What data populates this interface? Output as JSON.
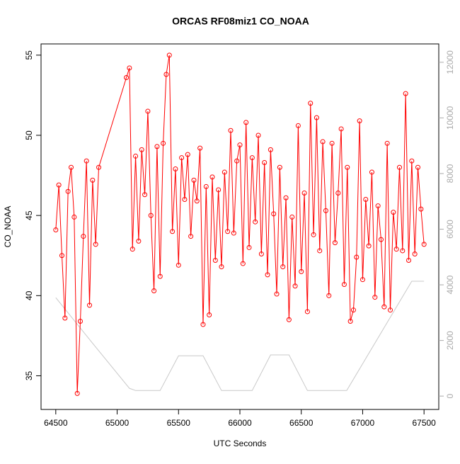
{
  "chart_data": {
    "type": "line",
    "title": "ORCAS RF08miz1 CO_NOAA",
    "x_label": "UTC Seconds",
    "y_label": "CO_NOAA",
    "xlim": [
      64380,
      67620
    ],
    "xticks": [
      64500,
      65000,
      65500,
      66000,
      66500,
      67000,
      67500
    ],
    "ylim": [
      32.9,
      55.7
    ],
    "yticks": [
      35,
      40,
      45,
      50,
      55
    ],
    "y2lim": [
      -480,
      12660
    ],
    "y2ticks": [
      0,
      2000,
      4000,
      6000,
      8000,
      10000,
      12000
    ],
    "grid": false,
    "series": [
      {
        "name": "CO_NOAA",
        "color": "#ff0000",
        "markers": true,
        "x": [
          64500,
          64525,
          64550,
          64575,
          64600,
          64625,
          64650,
          64675,
          64700,
          64725,
          64750,
          64775,
          64800,
          64825,
          64850,
          65075,
          65100,
          65125,
          65150,
          65175,
          65200,
          65225,
          65250,
          65275,
          65300,
          65325,
          65350,
          65375,
          65400,
          65425,
          65450,
          65475,
          65500,
          65525,
          65550,
          65575,
          65600,
          65625,
          65650,
          65675,
          65700,
          65725,
          65750,
          65775,
          65800,
          65825,
          65850,
          65875,
          65900,
          65925,
          65950,
          65975,
          66000,
          66025,
          66050,
          66075,
          66100,
          66125,
          66150,
          66175,
          66200,
          66225,
          66250,
          66275,
          66300,
          66325,
          66350,
          66375,
          66400,
          66425,
          66450,
          66475,
          66500,
          66525,
          66550,
          66575,
          66600,
          66625,
          66650,
          66675,
          66700,
          66725,
          66750,
          66775,
          66800,
          66825,
          66850,
          66875,
          66900,
          66925,
          66950,
          66975,
          67000,
          67025,
          67050,
          67075,
          67100,
          67125,
          67150,
          67175,
          67200,
          67225,
          67250,
          67275,
          67300,
          67325,
          67350,
          67375,
          67400,
          67425,
          67450,
          67475,
          67500
        ],
        "values": [
          44.1,
          46.9,
          42.5,
          38.6,
          46.5,
          48.0,
          44.9,
          33.9,
          38.4,
          43.7,
          48.4,
          39.4,
          47.2,
          43.2,
          48.0,
          53.6,
          54.2,
          42.9,
          48.7,
          43.4,
          49.1,
          46.3,
          51.5,
          45.0,
          40.3,
          49.3,
          41.2,
          49.5,
          53.8,
          55.0,
          44.0,
          47.9,
          41.9,
          48.6,
          46.0,
          48.8,
          43.7,
          47.2,
          45.9,
          49.2,
          38.2,
          46.8,
          38.8,
          47.4,
          42.2,
          46.6,
          41.8,
          47.7,
          44.0,
          50.3,
          43.9,
          48.4,
          49.4,
          42.0,
          50.8,
          43.0,
          48.6,
          44.6,
          50.0,
          42.6,
          48.3,
          41.3,
          49.1,
          45.1,
          40.1,
          48.0,
          41.8,
          46.1,
          38.5,
          44.9,
          40.6,
          50.6,
          41.5,
          46.4,
          39.0,
          52.0,
          43.8,
          51.1,
          42.8,
          49.6,
          45.3,
          40.0,
          49.5,
          43.3,
          46.4,
          50.4,
          40.7,
          48.0,
          38.4,
          39.1,
          42.4,
          50.9,
          41.0,
          46.0,
          43.1,
          47.7,
          39.9,
          45.6,
          43.5,
          39.3,
          49.5,
          39.1,
          45.2,
          42.9,
          48.0,
          42.8,
          52.6,
          42.2,
          48.4,
          42.6,
          48.0,
          45.4,
          43.2
        ]
      },
      {
        "color": "#c8c8c8",
        "axis": "y2",
        "markers": false,
        "x": [
          64500,
          64800,
          65100,
          65150,
          65350,
          65500,
          65700,
          65850,
          66100,
          66250,
          66400,
          66550,
          66870,
          67400,
          67500
        ],
        "values": [
          3540,
          1900,
          280,
          200,
          200,
          1450,
          1450,
          200,
          200,
          1480,
          1480,
          200,
          200,
          4130,
          4130
        ]
      }
    ]
  }
}
